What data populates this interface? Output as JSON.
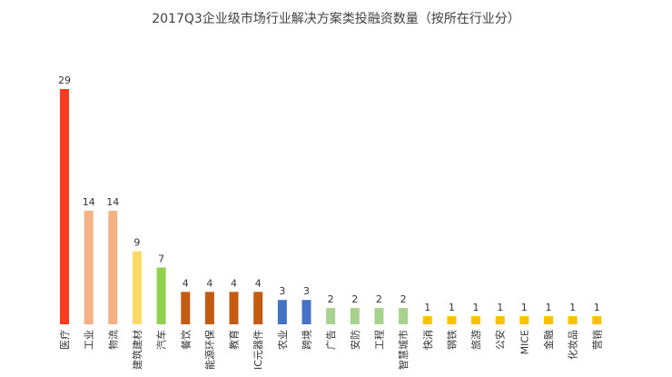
{
  "chart_data": {
    "type": "bar",
    "title": "2017Q3企业级市场行业解决方案类投融资数量（按所在行业分）",
    "xlabel": "",
    "ylabel": "",
    "ylim": [
      0,
      29
    ],
    "grid": false,
    "legend": "none",
    "categories": [
      "医疗",
      "工业",
      "物流",
      "建筑建材",
      "汽车",
      "餐饮",
      "能源环保",
      "教育",
      "IC元器件",
      "农业",
      "跨境",
      "广告",
      "安防",
      "工程",
      "智慧城市",
      "快消",
      "钢铁",
      "旅游",
      "公安",
      "MICE",
      "金融",
      "化妆品",
      "营销"
    ],
    "values": [
      29,
      14,
      14,
      9,
      7,
      4,
      4,
      4,
      4,
      3,
      3,
      2,
      2,
      2,
      2,
      1,
      1,
      1,
      1,
      1,
      1,
      1,
      1
    ],
    "colors": [
      "#ff3b1f",
      "#f4b183",
      "#f4b183",
      "#ffd966",
      "#92d050",
      "#c55a11",
      "#c55a11",
      "#c55a11",
      "#c55a11",
      "#4472c4",
      "#4472c4",
      "#a9d18e",
      "#a9d18e",
      "#a9d18e",
      "#a9d18e",
      "#ffc000",
      "#ffc000",
      "#ffc000",
      "#ffc000",
      "#ffc000",
      "#ffc000",
      "#ffc000",
      "#ffc000"
    ]
  }
}
